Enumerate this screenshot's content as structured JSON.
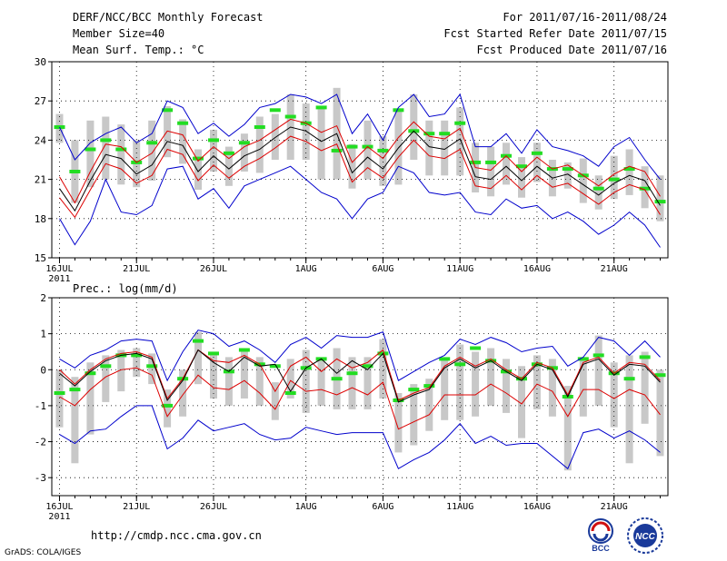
{
  "header": {
    "title": "DERF/NCC/BCC Monthly Forecast",
    "member_size": "Member Size=40",
    "variable1": "Mean Surf. Temp.: °C",
    "period": "For 2011/07/16-2011/08/24",
    "started": "Fcst Started Refer Date 2011/07/15",
    "produced": "Fcst Produced Date 2011/07/16"
  },
  "footer": {
    "url": "http://cmdp.ncc.cma.gov.cn",
    "credit": "GrADS: COLA/IGES",
    "logo_bcc": "BCC",
    "logo_ncc": "NCC"
  },
  "colors": {
    "max_min": "#0000cc",
    "spread": "#dd0000",
    "mean": "#000000",
    "box": "#c8c8c8",
    "median": "#22dd22"
  },
  "chart_data": [
    {
      "type": "line",
      "title": "Mean Surf. Temp.: °C",
      "ylim": [
        15,
        30
      ],
      "yticks": [
        15,
        18,
        21,
        24,
        27,
        30
      ],
      "xtick_labels": [
        "16JUL",
        "21JUL",
        "26JUL",
        "1AUG",
        "6AUG",
        "11AUG",
        "16AUG",
        "21AUG"
      ],
      "xtick_days": [
        1,
        6,
        11,
        17,
        22,
        27,
        32,
        37
      ],
      "year_label": "2011",
      "days": 40,
      "series": [
        {
          "name": "max",
          "values": [
            25.0,
            22.5,
            23.8,
            24.5,
            25.0,
            23.8,
            24.5,
            27.0,
            26.5,
            24.5,
            25.3,
            24.3,
            25.2,
            26.5,
            26.8,
            27.5,
            27.3,
            26.8,
            27.5,
            24.5,
            26.0,
            24.0,
            26.5,
            27.5,
            25.8,
            26.0,
            27.5,
            23.5,
            23.5,
            24.5,
            23.0,
            24.8,
            23.5,
            23.2,
            22.8,
            22.0,
            23.5,
            24.2,
            22.5,
            21.0
          ]
        },
        {
          "name": "mean_plus",
          "values": [
            21.2,
            19.2,
            21.6,
            23.7,
            23.5,
            22.3,
            23.0,
            24.7,
            24.4,
            22.4,
            23.5,
            22.6,
            23.5,
            24.0,
            24.8,
            25.6,
            25.3,
            24.6,
            25.1,
            22.3,
            23.5,
            22.6,
            24.2,
            25.4,
            24.3,
            24.1,
            24.9,
            21.9,
            21.7,
            22.8,
            21.6,
            22.7,
            21.8,
            22.1,
            21.3,
            20.5,
            21.4,
            22.0,
            21.6,
            19.7
          ]
        },
        {
          "name": "mean",
          "values": [
            20.3,
            18.6,
            20.9,
            22.9,
            22.6,
            21.4,
            22.1,
            23.9,
            23.6,
            21.6,
            22.8,
            21.8,
            22.8,
            23.3,
            24.2,
            25.0,
            24.7,
            23.9,
            24.5,
            21.5,
            22.7,
            21.8,
            23.4,
            24.7,
            23.5,
            23.3,
            24.1,
            21.2,
            21.0,
            22.0,
            20.9,
            22.0,
            21.1,
            21.4,
            20.6,
            19.8,
            20.7,
            21.3,
            20.9,
            19.0
          ]
        },
        {
          "name": "mean_minus",
          "values": [
            19.6,
            18.1,
            20.2,
            22.2,
            21.8,
            20.7,
            21.3,
            23.3,
            22.9,
            20.9,
            22.1,
            21.1,
            22.0,
            22.6,
            23.4,
            24.3,
            23.9,
            23.2,
            23.7,
            20.8,
            21.9,
            21.1,
            22.7,
            24.0,
            22.8,
            22.6,
            23.3,
            20.5,
            20.3,
            21.3,
            20.2,
            21.3,
            20.4,
            20.7,
            19.9,
            19.1,
            20.0,
            20.6,
            20.2,
            18.3
          ]
        },
        {
          "name": "min",
          "values": [
            18.0,
            16.0,
            17.8,
            21.0,
            18.5,
            18.3,
            19.0,
            21.8,
            22.0,
            19.5,
            20.3,
            18.8,
            20.5,
            21.0,
            21.5,
            22.0,
            21.0,
            20.0,
            19.5,
            18.0,
            19.5,
            20.0,
            22.0,
            21.5,
            20.0,
            19.8,
            20.0,
            18.5,
            18.3,
            19.5,
            18.8,
            19.0,
            18.0,
            18.5,
            17.8,
            16.8,
            17.5,
            18.5,
            17.5,
            15.8
          ]
        },
        {
          "name": "box_top",
          "values": [
            26.0,
            24.0,
            25.5,
            25.8,
            25.2,
            24.0,
            25.5,
            26.6,
            25.6,
            23.3,
            24.8,
            23.5,
            24.5,
            25.8,
            26.0,
            27.5,
            26.8,
            26.5,
            28.0,
            23.7,
            25.5,
            24.3,
            26.3,
            27.5,
            25.5,
            25.5,
            26.5,
            23.8,
            23.5,
            23.8,
            22.7,
            23.8,
            22.5,
            22.3,
            22.6,
            21.3,
            22.8,
            23.3,
            22.0,
            21.3
          ]
        },
        {
          "name": "box_bottom",
          "values": [
            23.8,
            19.2,
            20.4,
            21.0,
            20.6,
            20.4,
            20.9,
            22.7,
            22.2,
            20.2,
            21.6,
            20.5,
            21.6,
            21.5,
            22.5,
            22.5,
            22.5,
            21.0,
            21.0,
            20.3,
            21.0,
            20.5,
            20.6,
            22.5,
            21.3,
            21.3,
            21.3,
            20.0,
            19.7,
            20.6,
            19.6,
            20.8,
            19.7,
            20.3,
            19.2,
            18.7,
            19.5,
            19.8,
            18.8,
            17.8
          ]
        },
        {
          "name": "median",
          "values": [
            25.0,
            21.6,
            23.3,
            24.0,
            23.3,
            22.3,
            23.8,
            26.3,
            25.3,
            22.6,
            24.0,
            23.0,
            23.8,
            25.0,
            26.3,
            25.8,
            25.3,
            26.5,
            23.2,
            23.5,
            23.5,
            23.2,
            26.3,
            24.7,
            24.5,
            24.5,
            25.3,
            22.3,
            22.3,
            22.8,
            22.0,
            23.0,
            21.8,
            21.8,
            21.3,
            20.3,
            21.0,
            21.8,
            20.3,
            19.3
          ]
        }
      ]
    },
    {
      "type": "line",
      "title": "Prec.: log(mm/d)",
      "ylim": [
        -3.5,
        2
      ],
      "yticks": [
        -3,
        -2,
        -1,
        0,
        1,
        2
      ],
      "xtick_labels": [
        "16JUL",
        "21JUL",
        "26JUL",
        "1AUG",
        "6AUG",
        "11AUG",
        "16AUG",
        "21AUG"
      ],
      "xtick_days": [
        1,
        6,
        11,
        17,
        22,
        27,
        32,
        37
      ],
      "year_label": "2011",
      "days": 40,
      "series": [
        {
          "name": "max",
          "values": [
            0.3,
            0.05,
            0.4,
            0.55,
            0.8,
            0.85,
            0.8,
            -0.3,
            0.5,
            1.1,
            1.0,
            0.65,
            0.8,
            0.55,
            0.2,
            0.7,
            0.9,
            0.6,
            0.95,
            0.9,
            0.9,
            1.05,
            -0.3,
            -0.05,
            0.2,
            0.4,
            0.85,
            0.7,
            0.9,
            0.75,
            0.5,
            0.6,
            0.65,
            0.1,
            0.35,
            0.9,
            0.8,
            0.4,
            0.8,
            0.35
          ]
        },
        {
          "name": "mean_plus",
          "values": [
            0.0,
            -0.4,
            0.0,
            0.3,
            0.45,
            0.5,
            0.35,
            -0.8,
            -0.25,
            0.55,
            0.25,
            0.2,
            0.4,
            0.15,
            -0.6,
            0.1,
            0.35,
            -0.05,
            0.3,
            0.05,
            0.2,
            0.55,
            -0.85,
            -0.65,
            -0.5,
            0.1,
            0.35,
            0.1,
            0.3,
            0.0,
            -0.25,
            0.2,
            0.05,
            -0.7,
            0.2,
            0.35,
            -0.1,
            0.2,
            0.15,
            -0.3
          ]
        },
        {
          "name": "mean",
          "values": [
            -0.1,
            -0.45,
            -0.05,
            0.25,
            0.4,
            0.45,
            0.3,
            -0.85,
            -0.3,
            0.55,
            0.2,
            -0.05,
            0.35,
            0.1,
            0.15,
            -0.6,
            0.05,
            0.3,
            -0.1,
            0.25,
            0.0,
            0.45,
            -0.9,
            -0.7,
            -0.55,
            0.05,
            0.3,
            0.05,
            0.25,
            -0.05,
            -0.3,
            0.15,
            0.0,
            -0.75,
            0.15,
            0.3,
            -0.15,
            0.15,
            0.1,
            -0.35
          ]
        },
        {
          "name": "mean_minus",
          "values": [
            -0.75,
            -1.0,
            -0.55,
            -0.2,
            0.0,
            0.05,
            -0.15,
            -1.3,
            -0.7,
            -0.15,
            -0.5,
            -0.55,
            -0.3,
            -0.65,
            -1.1,
            -0.3,
            -0.6,
            -0.55,
            -0.7,
            -0.5,
            -0.7,
            -0.35,
            -1.65,
            -1.45,
            -1.25,
            -0.7,
            -0.7,
            -0.7,
            -0.4,
            -0.65,
            -0.95,
            -0.4,
            -0.6,
            -1.3,
            -0.55,
            -0.55,
            -0.8,
            -0.55,
            -0.7,
            -1.25
          ]
        },
        {
          "name": "min",
          "values": [
            -1.8,
            -2.05,
            -1.7,
            -1.65,
            -1.3,
            -1.0,
            -1.0,
            -2.2,
            -1.9,
            -1.4,
            -1.7,
            -1.6,
            -1.5,
            -1.8,
            -1.95,
            -1.9,
            -1.6,
            -1.7,
            -1.8,
            -1.75,
            -1.75,
            -1.75,
            -2.75,
            -2.5,
            -2.3,
            -1.95,
            -1.5,
            -2.05,
            -1.85,
            -2.1,
            -2.05,
            -2.05,
            -2.4,
            -2.75,
            -1.75,
            -1.65,
            -1.9,
            -1.7,
            -1.95,
            -2.3
          ]
        },
        {
          "name": "box_top",
          "values": [
            0.0,
            -0.2,
            0.2,
            0.4,
            0.55,
            0.6,
            0.45,
            -0.55,
            0.0,
            1.05,
            0.5,
            0.35,
            0.55,
            0.35,
            -0.35,
            0.3,
            0.55,
            0.25,
            0.6,
            0.35,
            0.35,
            0.85,
            -0.65,
            -0.4,
            -0.25,
            0.3,
            0.7,
            0.5,
            0.6,
            0.3,
            0.1,
            0.4,
            0.3,
            -0.45,
            0.35,
            0.95,
            0.2,
            0.4,
            0.5,
            0.0
          ]
        },
        {
          "name": "box_bottom",
          "values": [
            -1.6,
            -2.6,
            -1.8,
            -0.9,
            -0.6,
            -0.2,
            -0.4,
            -1.6,
            -1.3,
            -0.4,
            -0.8,
            -1.0,
            -0.8,
            -1.0,
            -1.4,
            -0.8,
            -1.2,
            -1.0,
            -1.1,
            -1.1,
            -1.1,
            -0.8,
            -2.3,
            -2.1,
            -1.7,
            -1.4,
            -1.4,
            -1.3,
            -1.0,
            -1.2,
            -1.9,
            -1.1,
            -1.3,
            -2.8,
            -1.3,
            -1.0,
            -1.6,
            -2.6,
            -1.5,
            -2.4
          ]
        },
        {
          "name": "median",
          "values": [
            -0.65,
            -0.55,
            -0.1,
            0.1,
            0.4,
            0.4,
            0.1,
            -1.0,
            -0.25,
            0.8,
            0.45,
            -0.05,
            0.55,
            0.15,
            0.1,
            -0.65,
            0.05,
            0.3,
            -0.25,
            -0.1,
            0.1,
            0.45,
            -0.85,
            -0.55,
            -0.45,
            0.3,
            0.15,
            0.6,
            0.25,
            -0.05,
            -0.25,
            0.15,
            0.05,
            -0.75,
            0.3,
            0.4,
            -0.1,
            -0.25,
            0.35,
            -0.15
          ]
        }
      ]
    }
  ]
}
